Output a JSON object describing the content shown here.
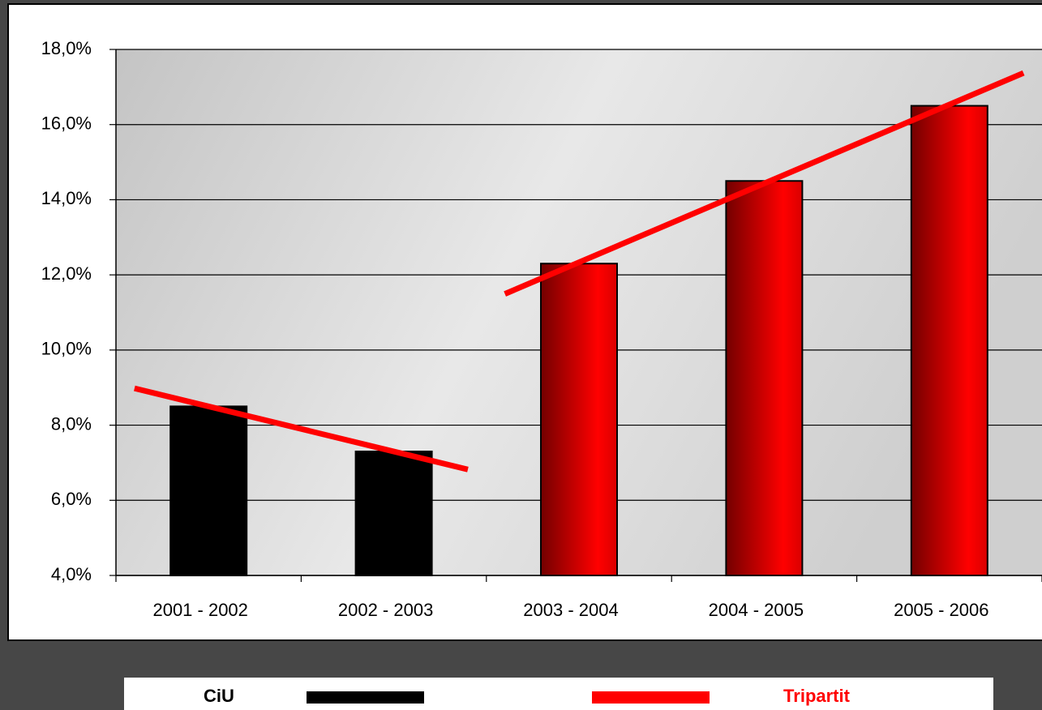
{
  "chart_data": {
    "type": "bar",
    "categories": [
      "2001 - 2002",
      "2002 - 2003",
      "2003 - 2004",
      "2004 - 2005",
      "2005 - 2006"
    ],
    "series": [
      {
        "name": "CiU",
        "color": "#000000",
        "values": [
          8.5,
          7.3,
          null,
          null,
          null
        ]
      },
      {
        "name": "Tripartit",
        "color": "#ff0000",
        "values": [
          null,
          null,
          12.3,
          14.5,
          16.5
        ]
      }
    ],
    "ylim": [
      4,
      18
    ],
    "yticks": [
      {
        "value": 4,
        "label": "4,0%"
      },
      {
        "value": 6,
        "label": "6,0%"
      },
      {
        "value": 8,
        "label": "8,0%"
      },
      {
        "value": 10,
        "label": "10,0%"
      },
      {
        "value": 12,
        "label": "12,0%"
      },
      {
        "value": 14,
        "label": "14,0%"
      },
      {
        "value": 16,
        "label": "16,0%"
      },
      {
        "value": 18,
        "label": "18,0%"
      }
    ],
    "grid": true,
    "trendlines": true
  }
}
